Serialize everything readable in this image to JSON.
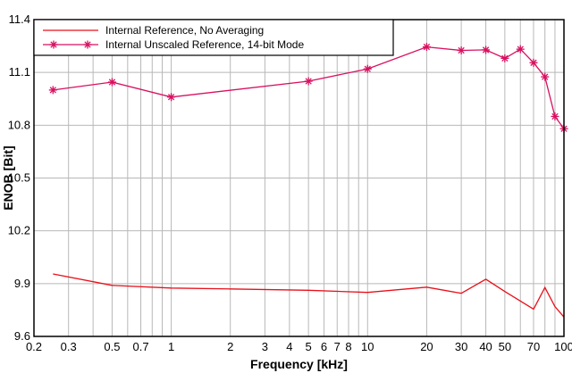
{
  "chart_data": {
    "type": "line",
    "xlabel": "Frequency [kHz]",
    "ylabel": "ENOB [Bit]",
    "xscale": "log",
    "xlim": [
      0.2,
      100
    ],
    "ylim": [
      9.6,
      11.4
    ],
    "grid": true,
    "legend_position": "top-left",
    "x_ticks": [
      {
        "value": 0.2,
        "label": "0.2"
      },
      {
        "value": 0.3,
        "label": "0.3"
      },
      {
        "value": 0.5,
        "label": "0.5"
      },
      {
        "value": 0.7,
        "label": "0.7"
      },
      {
        "value": 1,
        "label": "1"
      },
      {
        "value": 2,
        "label": "2"
      },
      {
        "value": 3,
        "label": "3"
      },
      {
        "value": 4,
        "label": "4"
      },
      {
        "value": 5,
        "label": "5"
      },
      {
        "value": 6,
        "label": "6"
      },
      {
        "value": 7,
        "label": "7"
      },
      {
        "value": 8,
        "label": "8"
      },
      {
        "value": 10,
        "label": "10"
      },
      {
        "value": 20,
        "label": "20"
      },
      {
        "value": 30,
        "label": "30"
      },
      {
        "value": 40,
        "label": "40"
      },
      {
        "value": 50,
        "label": "50"
      },
      {
        "value": 70,
        "label": "70"
      },
      {
        "value": 100,
        "label": "100"
      }
    ],
    "x_minor_grid": [
      0.4,
      0.6,
      0.8,
      0.9,
      9,
      60,
      80,
      90
    ],
    "y_ticks": [
      {
        "value": 9.6,
        "label": "9.6"
      },
      {
        "value": 9.9,
        "label": "9.9"
      },
      {
        "value": 10.2,
        "label": "10.2"
      },
      {
        "value": 10.5,
        "label": "10.5"
      },
      {
        "value": 10.8,
        "label": "10.8"
      },
      {
        "value": 11.1,
        "label": "11.1"
      },
      {
        "value": 11.4,
        "label": "11.4"
      }
    ],
    "series": [
      {
        "name": "Internal Reference, No Averaging",
        "color": "#e8101a",
        "marker": "none",
        "x": [
          0.25,
          0.5,
          1,
          2,
          5,
          10,
          20,
          30,
          40,
          50,
          70,
          80,
          90,
          100
        ],
        "y": [
          9.955,
          9.89,
          9.875,
          9.87,
          9.862,
          9.85,
          9.88,
          9.845,
          9.925,
          9.855,
          9.755,
          9.878,
          9.77,
          9.71
        ]
      },
      {
        "name": "Internal Unscaled Reference, 14-bit Mode",
        "color": "#d81060",
        "marker": "asterisk",
        "x": [
          0.25,
          0.5,
          1,
          5,
          10,
          20,
          30,
          40,
          50,
          60,
          70,
          80,
          90,
          100
        ],
        "y": [
          11.0,
          11.045,
          10.96,
          11.05,
          11.12,
          11.245,
          11.225,
          11.228,
          11.18,
          11.232,
          11.155,
          11.075,
          10.85,
          10.78
        ]
      }
    ]
  }
}
